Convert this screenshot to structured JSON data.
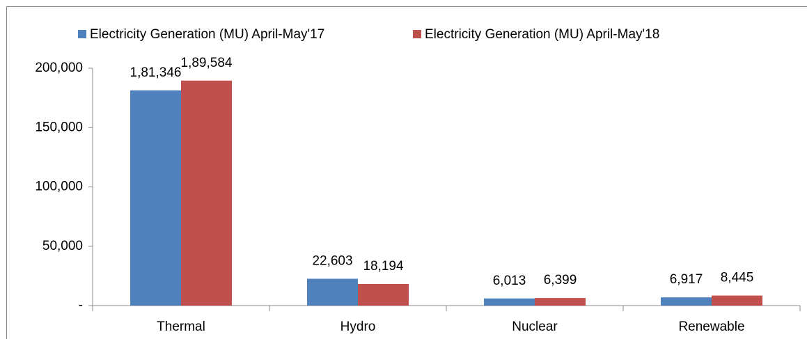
{
  "chart_data": {
    "type": "bar",
    "categories": [
      "Thermal",
      "Hydro",
      "Nuclear",
      "Renewable"
    ],
    "series": [
      {
        "name": "Electricity Generation (MU) April-May'17",
        "color": "#4f81bd",
        "values": [
          181346,
          22603,
          6013,
          6917
        ],
        "value_labels": [
          "1,81,346",
          "22,603",
          "6,013",
          "6,917"
        ]
      },
      {
        "name": "Electricity Generation (MU) April-May'18",
        "color": "#c0504d",
        "values": [
          189584,
          18194,
          6399,
          8445
        ],
        "value_labels": [
          "1,89,584",
          "18,194",
          "6,399",
          "8,445"
        ]
      }
    ],
    "ylim": [
      0,
      200000
    ],
    "yticks": [
      {
        "value": 0,
        "label": "-"
      },
      {
        "value": 50000,
        "label": "50,000"
      },
      {
        "value": 100000,
        "label": "100,000"
      },
      {
        "value": 150000,
        "label": "150,000"
      },
      {
        "value": 200000,
        "label": "200,000"
      }
    ],
    "grid": false,
    "legend": "top"
  }
}
